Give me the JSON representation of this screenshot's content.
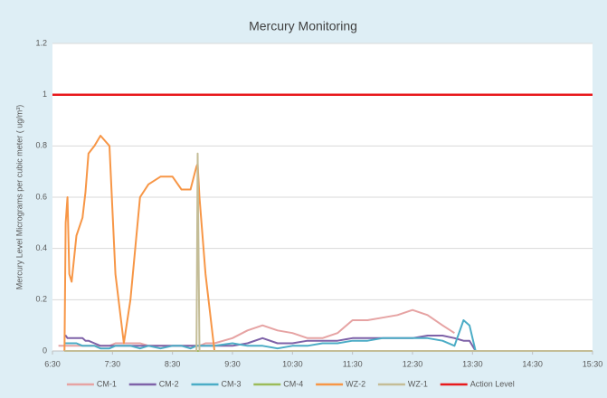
{
  "chart_data": {
    "type": "line",
    "title": "Mercury Monitoring",
    "y_label": "Mercury Level Micrograms per cubic meter ( ug/m³)",
    "x": [
      6.5,
      6.6,
      6.7,
      6.72,
      6.75,
      6.78,
      6.82,
      6.9,
      7.0,
      7.05,
      7.1,
      7.2,
      7.3,
      7.45,
      7.55,
      7.69,
      7.8,
      7.96,
      8.1,
      8.3,
      8.5,
      8.65,
      8.8,
      8.9,
      8.92,
      8.95,
      9.05,
      9.2,
      9.5,
      9.75,
      10.0,
      10.25,
      10.5,
      10.75,
      11.0,
      11.25,
      11.5,
      11.75,
      12.0,
      12.25,
      12.5,
      12.75,
      13.0,
      13.2,
      13.35,
      13.45,
      13.55,
      13.7,
      14.0,
      15.5
    ],
    "series": [
      {
        "name": "CM-1",
        "color": "#e6a3a3",
        "values": [
          null,
          0.02,
          0.02,
          0.02,
          0.02,
          0.02,
          0.02,
          0.02,
          0.02,
          0.02,
          0.02,
          0.02,
          0.02,
          0.02,
          0.03,
          0.03,
          0.03,
          0.03,
          0.02,
          0.02,
          0.02,
          0.02,
          0.02,
          0.02,
          0.02,
          0.02,
          0.03,
          0.03,
          0.05,
          0.08,
          0.1,
          0.08,
          0.07,
          0.05,
          0.05,
          0.07,
          0.12,
          0.12,
          0.13,
          0.14,
          0.16,
          0.14,
          0.1,
          0.07,
          null,
          null,
          null,
          null,
          null,
          null
        ]
      },
      {
        "name": "CM-2",
        "color": "#7e62a8",
        "values": [
          null,
          null,
          0.06,
          0.06,
          0.05,
          0.05,
          0.05,
          0.05,
          0.05,
          0.04,
          0.04,
          0.03,
          0.02,
          0.02,
          0.02,
          0.02,
          0.02,
          0.02,
          0.02,
          0.02,
          0.02,
          0.02,
          0.02,
          0.02,
          0.02,
          0.02,
          0.02,
          0.02,
          0.02,
          0.03,
          0.05,
          0.03,
          0.03,
          0.04,
          0.04,
          0.04,
          0.05,
          0.05,
          0.05,
          0.05,
          0.05,
          0.06,
          0.06,
          0.05,
          0.04,
          0.04,
          0,
          null,
          null,
          null
        ]
      },
      {
        "name": "CM-3",
        "color": "#4bacc6",
        "values": [
          null,
          null,
          0.03,
          0.03,
          0.03,
          0.03,
          0.03,
          0.03,
          0.02,
          0.02,
          0.02,
          0.02,
          0.01,
          0.01,
          0.02,
          0.02,
          0.02,
          0.01,
          0.02,
          0.01,
          0.02,
          0.02,
          0.01,
          0.02,
          0.02,
          0.02,
          0.02,
          0.02,
          0.03,
          0.02,
          0.02,
          0.01,
          0.02,
          0.02,
          0.03,
          0.03,
          0.04,
          0.04,
          0.05,
          0.05,
          0.05,
          0.05,
          0.04,
          0.02,
          0.12,
          0.1,
          0,
          null,
          null,
          null
        ]
      },
      {
        "name": "CM-4",
        "color": "#9bbb59",
        "values": [
          null,
          null,
          0,
          0,
          0,
          0,
          0,
          0,
          0,
          0,
          0,
          0,
          0,
          0,
          0,
          0,
          0,
          0,
          0,
          0,
          0,
          0,
          0,
          0,
          0,
          0,
          0,
          0,
          0,
          0,
          0,
          0,
          0,
          0,
          0,
          0,
          0,
          0,
          0,
          0,
          0,
          0,
          0,
          0,
          0,
          0,
          0,
          0,
          0,
          0
        ]
      },
      {
        "name": "WZ-2",
        "color": "#f79646",
        "values": [
          null,
          null,
          0,
          0.5,
          0.6,
          0.3,
          0.27,
          0.45,
          0.52,
          0.62,
          0.77,
          0.8,
          0.84,
          0.8,
          0.3,
          0.03,
          0.2,
          0.6,
          0.65,
          0.68,
          0.68,
          0.63,
          0.63,
          0.72,
          0.73,
          0.6,
          0.3,
          0,
          0,
          0,
          0,
          0,
          0,
          0,
          0,
          0,
          0,
          0,
          0,
          0,
          0,
          0,
          0,
          0,
          0,
          0,
          0,
          0,
          0,
          0
        ]
      },
      {
        "name": "WZ-1",
        "color": "#c4bd97",
        "values": [
          null,
          null,
          0,
          0,
          0,
          0,
          0,
          0,
          0,
          0,
          0,
          0,
          0,
          0,
          0,
          0,
          0,
          0,
          0,
          0,
          0,
          0,
          0,
          0,
          0.77,
          0,
          0,
          0,
          0,
          0,
          0,
          0,
          0,
          0,
          0,
          0,
          0,
          0,
          0,
          0,
          0,
          0,
          0,
          0,
          0,
          0,
          0,
          0,
          0,
          0
        ]
      },
      {
        "name": "Action Level",
        "color": "#e8191c",
        "values": [
          1,
          1,
          1,
          1,
          1,
          1,
          1,
          1,
          1,
          1,
          1,
          1,
          1,
          1,
          1,
          1,
          1,
          1,
          1,
          1,
          1,
          1,
          1,
          1,
          1,
          1,
          1,
          1,
          1,
          1,
          1,
          1,
          1,
          1,
          1,
          1,
          1,
          1,
          1,
          1,
          1,
          1,
          1,
          1,
          1,
          1,
          1,
          1,
          1,
          1
        ]
      }
    ],
    "xlim": [
      6.5,
      15.5
    ],
    "xticks": [
      {
        "value": 6.5,
        "label": "6:30"
      },
      {
        "value": 7.5,
        "label": "7:30"
      },
      {
        "value": 8.5,
        "label": "8:30"
      },
      {
        "value": 9.5,
        "label": "9:30"
      },
      {
        "value": 10.5,
        "label": "10:30"
      },
      {
        "value": 11.5,
        "label": "11:30"
      },
      {
        "value": 12.5,
        "label": "12:30"
      },
      {
        "value": 13.5,
        "label": "13:30"
      },
      {
        "value": 14.5,
        "label": "14:30"
      },
      {
        "value": 15.5,
        "label": "15:30"
      }
    ],
    "ylim": [
      0,
      1.2
    ],
    "yticks": [
      0,
      0.2,
      0.4,
      0.6,
      0.8,
      1,
      1.2
    ],
    "grid": true,
    "legend": "bottom"
  }
}
